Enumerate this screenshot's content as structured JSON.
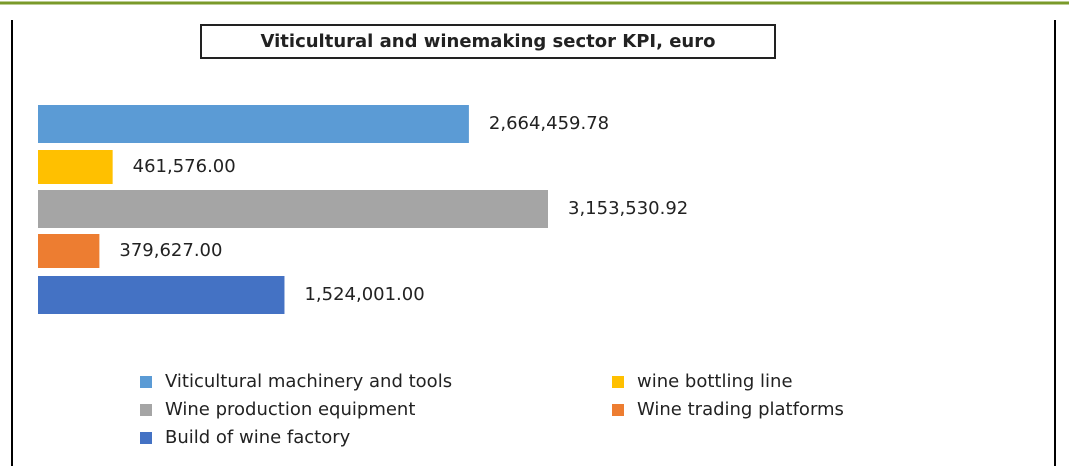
{
  "chart_data": {
    "type": "bar",
    "orientation": "horizontal",
    "title": "Viticultural and winemaking sector KPI, euro",
    "series": [
      {
        "name": "Viticultural machinery and tools",
        "color": "#5b9bd5",
        "values": [
          2664459.78
        ],
        "value_labels": [
          "2,664,459.78"
        ]
      },
      {
        "name": "wine bottling line",
        "color": "#ffc000",
        "values": [
          461576.0
        ],
        "value_labels": [
          "461,576.00"
        ]
      },
      {
        "name": "Wine production equipment",
        "color": "#a5a5a5",
        "values": [
          3153530.92
        ],
        "value_labels": [
          "3,153,530.92"
        ]
      },
      {
        "name": "Wine trading platforms",
        "color": "#ed7d31",
        "values": [
          379627.0
        ],
        "value_labels": [
          "379,627.00"
        ]
      },
      {
        "name": "Build of wine factory",
        "color": "#4472c4",
        "values": [
          1524001.0
        ],
        "value_labels": [
          "1,524,001.00"
        ]
      }
    ],
    "legend": "bottom"
  }
}
